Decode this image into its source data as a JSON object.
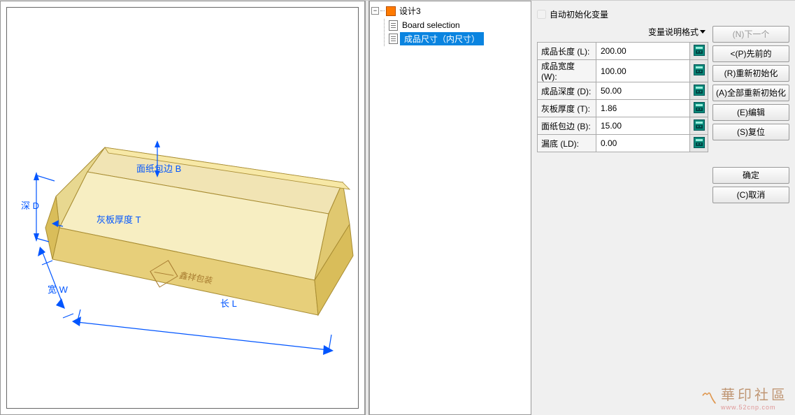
{
  "checkbox": {
    "label": "自动初始化变量"
  },
  "format": {
    "label": "变量说明格式"
  },
  "tree": {
    "root": "设计3",
    "n1": "Board selection",
    "n2": "成品尺寸（内尺寸）"
  },
  "vars": [
    {
      "name": "成品长度 (L):",
      "value": "200.00"
    },
    {
      "name": "成品宽度 (W):",
      "value": "100.00"
    },
    {
      "name": "成品深度 (D):",
      "value": "50.00"
    },
    {
      "name": "灰板厚度 (T):",
      "value": "1.86"
    },
    {
      "name": "面纸包边 (B):",
      "value": "15.00"
    },
    {
      "name": "漏底 (LD):",
      "value": "0.00"
    }
  ],
  "buttons": {
    "next": "(N)下一个",
    "prev": "<(P)先前的",
    "reinit": "(R)重新初始化",
    "reinit_all": "(A)全部重新初始化",
    "edit": "(E)编辑",
    "reset": "(S)复位",
    "ok": "确定",
    "cancel": "(C)取消"
  },
  "dims": {
    "length": "长 L",
    "width": "宽 W",
    "depth": "深 D",
    "thickness": "灰板厚度 T",
    "wrap": "面纸包边 B"
  },
  "box_logo": "鑫祥包装",
  "watermark": {
    "cn": "華印社區",
    "en": "www.52cnp.com"
  },
  "colors": {
    "box_top": "#f7e8a6",
    "box_front": "#e7cf7a",
    "box_side": "#d9bd5a",
    "box_inside": "#f1e4b4",
    "box_edge": "#a88c32",
    "dim": "#0055ff"
  }
}
